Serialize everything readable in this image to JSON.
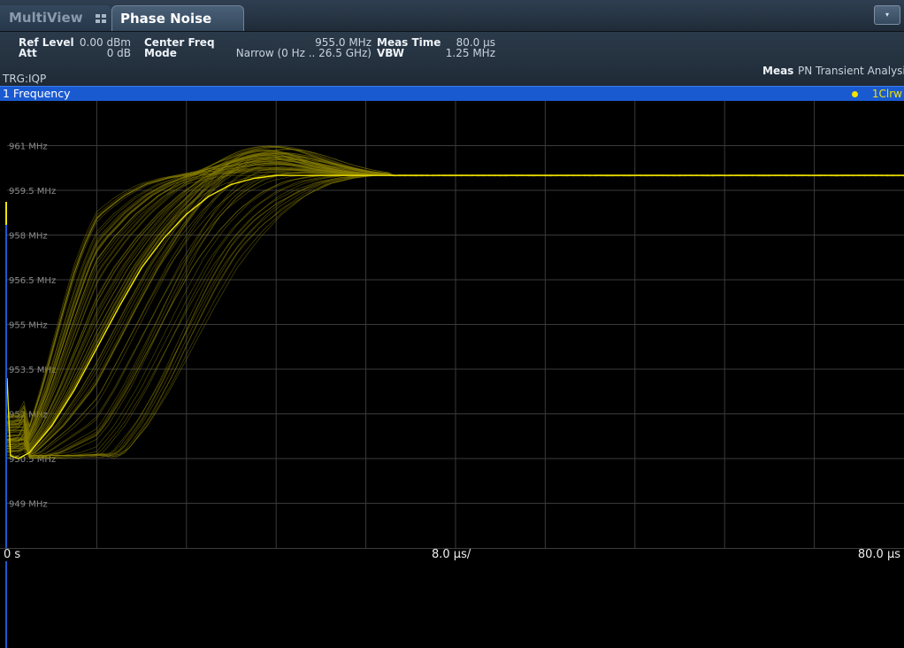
{
  "tabs": {
    "multiview_label": "MultiView",
    "multiview_icon": "grid-icon",
    "active_label": "Phase Noise",
    "dropdown_icon": "▾"
  },
  "header": {
    "ref_level_label": "Ref Level",
    "ref_level_value": "0.00 dBm",
    "att_label": "Att",
    "att_value": "0 dB",
    "center_freq_label": "Center Freq",
    "center_freq_value": "955.0 MHz",
    "mode_label": "Mode",
    "mode_value": "Narrow (0 Hz .. 26.5 GHz)",
    "meas_time_label": "Meas Time",
    "meas_time_value": "80.0 µs",
    "vbw_label": "VBW",
    "vbw_value": "1.25 MHz",
    "meas_label": "Meas",
    "meas_value": "PN Transient Analysi",
    "trigger": "TRG:IQP"
  },
  "diagram": {
    "title": "1 Frequency",
    "trace_label": "1Clrw"
  },
  "colors": {
    "accent": "#1a5ad0",
    "trace": "#f2e400",
    "trace_persist": "#8a8100",
    "grid": "#3a3a3a"
  },
  "chart_data": {
    "type": "line",
    "title": "1 Frequency",
    "xlabel": "",
    "ylabel": "",
    "x_ticks": [
      "0 s",
      "8.0 µs/",
      "80.0 µs"
    ],
    "y_tick_labels": [
      "961 MHz",
      "959.5 MHz",
      "958 MHz",
      "956.5 MHz",
      "955 MHz",
      "953.5 MHz",
      "952 MHz",
      "950.5 MHz",
      "949 MHz"
    ],
    "y_tick_values": [
      961,
      959.5,
      958,
      956.5,
      955,
      953.5,
      952,
      950.5,
      949
    ],
    "ylim": [
      947.5,
      962.5
    ],
    "xlim": [
      0,
      80
    ],
    "x_unit": "µs",
    "y_unit": "MHz",
    "grid": true,
    "series": [
      {
        "trace": "1Clrw",
        "x": [
          0,
          0.3,
          1,
          2,
          4,
          6,
          8,
          10,
          12,
          14,
          16,
          18,
          20,
          22,
          24,
          26,
          28,
          30,
          32,
          40,
          50,
          60,
          70,
          80
        ],
        "y": [
          953.2,
          950.6,
          950.5,
          950.7,
          951.6,
          952.8,
          954.2,
          955.6,
          956.9,
          957.9,
          958.7,
          959.3,
          959.7,
          959.9,
          960.0,
          960.0,
          960.0,
          960.0,
          960.0,
          960.0,
          960.0,
          960.0,
          960.0,
          960.0
        ]
      }
    ]
  }
}
